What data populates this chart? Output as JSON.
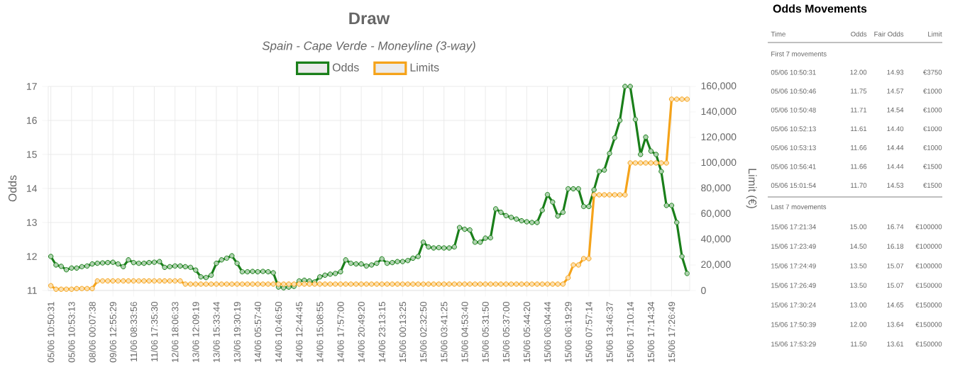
{
  "chart_data": [
    {
      "type": "line",
      "title": "Draw",
      "subtitle": "Spain - Cape Verde - Moneyline (3-way)",
      "ylabel": "Odds",
      "y2label": "Limit (€)",
      "categories": [
        "05/06 10:50:31",
        null,
        null,
        null,
        "05/06 10:53:13",
        null,
        null,
        null,
        "08/06 00:07:38",
        null,
        null,
        null,
        "09/06 12:55:29",
        null,
        null,
        null,
        "11/06 08:33:56",
        null,
        null,
        null,
        "11/06 17:35:30",
        null,
        null,
        null,
        "12/06 18:06:33",
        null,
        null,
        null,
        "13/06 12:09:19",
        null,
        null,
        null,
        "13/06 15:33:44",
        null,
        null,
        null,
        "13/06 19:30:19",
        null,
        null,
        null,
        "14/06 05:57:40",
        null,
        null,
        null,
        "14/06 10:46:50",
        null,
        null,
        null,
        "14/06 12:44:45",
        null,
        null,
        null,
        "14/06 15:08:55",
        null,
        null,
        null,
        "14/06 17:57:00",
        null,
        null,
        null,
        "14/06 20:49:20",
        null,
        null,
        null,
        "14/06 23:13:15",
        null,
        null,
        null,
        "15/06 00:13:25",
        null,
        null,
        null,
        "15/06 02:32:50",
        null,
        null,
        null,
        "15/06 03:41:25",
        null,
        null,
        null,
        "15/06 04:53:40",
        null,
        null,
        null,
        "15/06 05:31:50",
        null,
        null,
        null,
        "15/06 05:37:00",
        null,
        null,
        null,
        "15/06 05:44:20",
        null,
        null,
        null,
        "15/06 06:04:44",
        null,
        null,
        null,
        "15/06 06:19:29",
        null,
        null,
        null,
        "15/06 07:57:14",
        null,
        null,
        null,
        "15/06 13:46:37",
        null,
        null,
        null,
        "15/06 17:10:14",
        null,
        null,
        null,
        "15/06 17:14:34",
        null,
        null,
        null,
        "15/06 17:26:49",
        null,
        null,
        null
      ],
      "series": [
        {
          "name": "Odds",
          "color": "#1a7f1a",
          "values": [
            12.0,
            11.75,
            11.71,
            11.61,
            11.66,
            11.66,
            11.7,
            11.72,
            11.78,
            11.8,
            11.81,
            11.82,
            11.83,
            11.78,
            11.7,
            11.9,
            11.82,
            11.8,
            11.8,
            11.82,
            11.83,
            11.85,
            11.68,
            11.7,
            11.72,
            11.72,
            11.7,
            11.68,
            11.6,
            11.4,
            11.38,
            11.45,
            11.8,
            11.9,
            11.95,
            12.02,
            11.8,
            11.55,
            11.55,
            11.56,
            11.55,
            11.56,
            11.55,
            11.52,
            11.1,
            11.08,
            11.1,
            11.12,
            11.28,
            11.3,
            11.28,
            11.25,
            11.4,
            11.45,
            11.48,
            11.5,
            11.55,
            11.9,
            11.8,
            11.78,
            11.78,
            11.72,
            11.75,
            11.8,
            11.93,
            11.8,
            11.82,
            11.85,
            11.85,
            11.88,
            11.95,
            12.0,
            12.42,
            12.28,
            12.25,
            12.26,
            12.25,
            12.25,
            12.28,
            12.85,
            12.8,
            12.78,
            12.42,
            12.42,
            12.54,
            12.55,
            13.4,
            13.3,
            13.2,
            13.15,
            13.1,
            13.05,
            13.02,
            13.0,
            13.0,
            13.36,
            13.82,
            13.6,
            13.19,
            13.3,
            13.99,
            13.99,
            13.99,
            13.47,
            13.47,
            13.96,
            14.5,
            14.54,
            15.03,
            15.49,
            16.0,
            17.0,
            17.0,
            16.03,
            15.0,
            15.51,
            15.1,
            15.0,
            14.5,
            13.5,
            13.5,
            13.0,
            12.0,
            11.5
          ]
        },
        {
          "name": "Limits",
          "color": "#f5a31a",
          "axis": "y2",
          "values": [
            3750,
            1000,
            1000,
            1000,
            1000,
            1500,
            1500,
            1500,
            1500,
            7500,
            7500,
            7500,
            7500,
            7500,
            7500,
            7500,
            7500,
            7500,
            7500,
            7500,
            7500,
            7500,
            7500,
            7500,
            7500,
            7500,
            5000,
            5000,
            5000,
            5000,
            5000,
            5000,
            5000,
            5000,
            5000,
            5000,
            5000,
            5000,
            5000,
            5000,
            5000,
            5000,
            5000,
            5000,
            5000,
            5000,
            5000,
            5000,
            5000,
            5000,
            5000,
            5000,
            5000,
            5000,
            5000,
            5000,
            5000,
            5000,
            5000,
            5000,
            5000,
            5000,
            5000,
            5000,
            5000,
            5000,
            5000,
            5000,
            5000,
            5000,
            5000,
            5000,
            5000,
            5000,
            5000,
            5000,
            5000,
            5000,
            5000,
            5000,
            5000,
            5000,
            5000,
            5000,
            5000,
            5000,
            5000,
            5000,
            5000,
            5000,
            5000,
            5000,
            5000,
            5000,
            5000,
            5000,
            5000,
            5000,
            5000,
            5000,
            10000,
            20000,
            20000,
            25000,
            25000,
            75000,
            75000,
            75000,
            75000,
            75000,
            75000,
            75000,
            100000,
            100000,
            100000,
            100000,
            100000,
            100000,
            100000,
            100000,
            150000,
            150000,
            150000,
            150000
          ]
        }
      ],
      "ylim": [
        11,
        17
      ],
      "yticks": [
        11,
        12,
        13,
        14,
        15,
        16,
        17
      ],
      "y2lim": [
        0,
        160000
      ],
      "y2ticks": [
        0,
        {
          "value": 20000,
          "label": "20,000"
        },
        {
          "value": 40000,
          "label": "40,000"
        },
        {
          "value": 60000,
          "label": "60,000"
        },
        {
          "value": 80000,
          "label": "80,000"
        },
        {
          "value": 100000,
          "label": "100,000"
        },
        {
          "value": 120000,
          "label": "120,000"
        },
        {
          "value": 140000,
          "label": "140,000"
        },
        {
          "value": 160000,
          "label": "160,000"
        }
      ],
      "grid": true,
      "legend": "top",
      "marker": "circle",
      "line_style": "solid"
    },
    {
      "type": "other",
      "title": "Odds Movements",
      "annotations": [
        "Time",
        "Odds",
        "Fair Odds",
        "Limit",
        "First 7 movements",
        "05/06 10:50:31",
        "12.00",
        "14.93",
        "€3750",
        "05/06 10:50:46",
        "11.75",
        "14.57",
        "€1000",
        "05/06 10:50:48",
        "11.71",
        "14.54",
        "€1000",
        "05/06 10:52:13",
        "11.61",
        "14.40",
        "€1000",
        "05/06 10:53:13",
        "11.66",
        "14.44",
        "€1000",
        "05/06 10:56:41",
        "11.66",
        "14.44",
        "€1500",
        "05/06 15:01:54",
        "11.70",
        "14.53",
        "€1500",
        "Last 7 movements",
        "15/06 17:21:34",
        "15.00",
        "16.74",
        "€100000",
        "15/06 17:23:49",
        "14.50",
        "16.18",
        "€100000",
        "15/06 17:24:49",
        "13.50",
        "15.07",
        "€100000",
        "15/06 17:26:49",
        "13.50",
        "15.07",
        "€150000",
        "15/06 17:30:24",
        "13.00",
        "14.65",
        "€150000",
        "15/06 17:50:39",
        "12.00",
        "13.64",
        "€150000",
        "15/06 17:53:29",
        "11.50",
        "13.61",
        "€150000"
      ]
    }
  ]
}
